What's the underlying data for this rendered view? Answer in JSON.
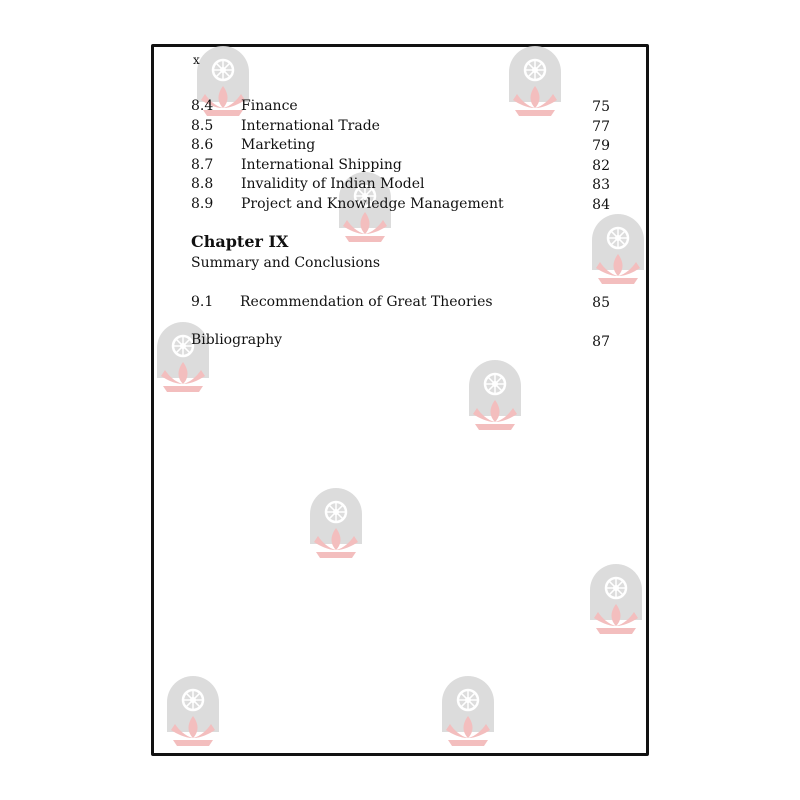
{
  "page_marker": "x",
  "entries": [
    {
      "num": "8.4",
      "title": "Finance",
      "page": "75"
    },
    {
      "num": "8.5",
      "title": "International Trade",
      "page": "77"
    },
    {
      "num": "8.6",
      "title": "Marketing",
      "page": "79"
    },
    {
      "num": "8.7",
      "title": "International Shipping",
      "page": "82"
    },
    {
      "num": "8.8",
      "title": "Invalidity of Indian Model",
      "page": "83"
    },
    {
      "num": "8.9",
      "title": "Project and Knowledge Management",
      "page": "84"
    }
  ],
  "chapter": {
    "heading": "Chapter IX",
    "subtitle": "Summary and Conclusions"
  },
  "chapter_entries": [
    {
      "num": "9.1",
      "title": "Recommendation of Great Theories",
      "page": "85"
    }
  ],
  "bibliography": {
    "title": "Bibliography",
    "page": "87"
  },
  "watermark": {
    "icon": "wheel-lotus-emblem",
    "arch_color": "#d9d9d9",
    "lotus_color": "#f2b8b8"
  }
}
